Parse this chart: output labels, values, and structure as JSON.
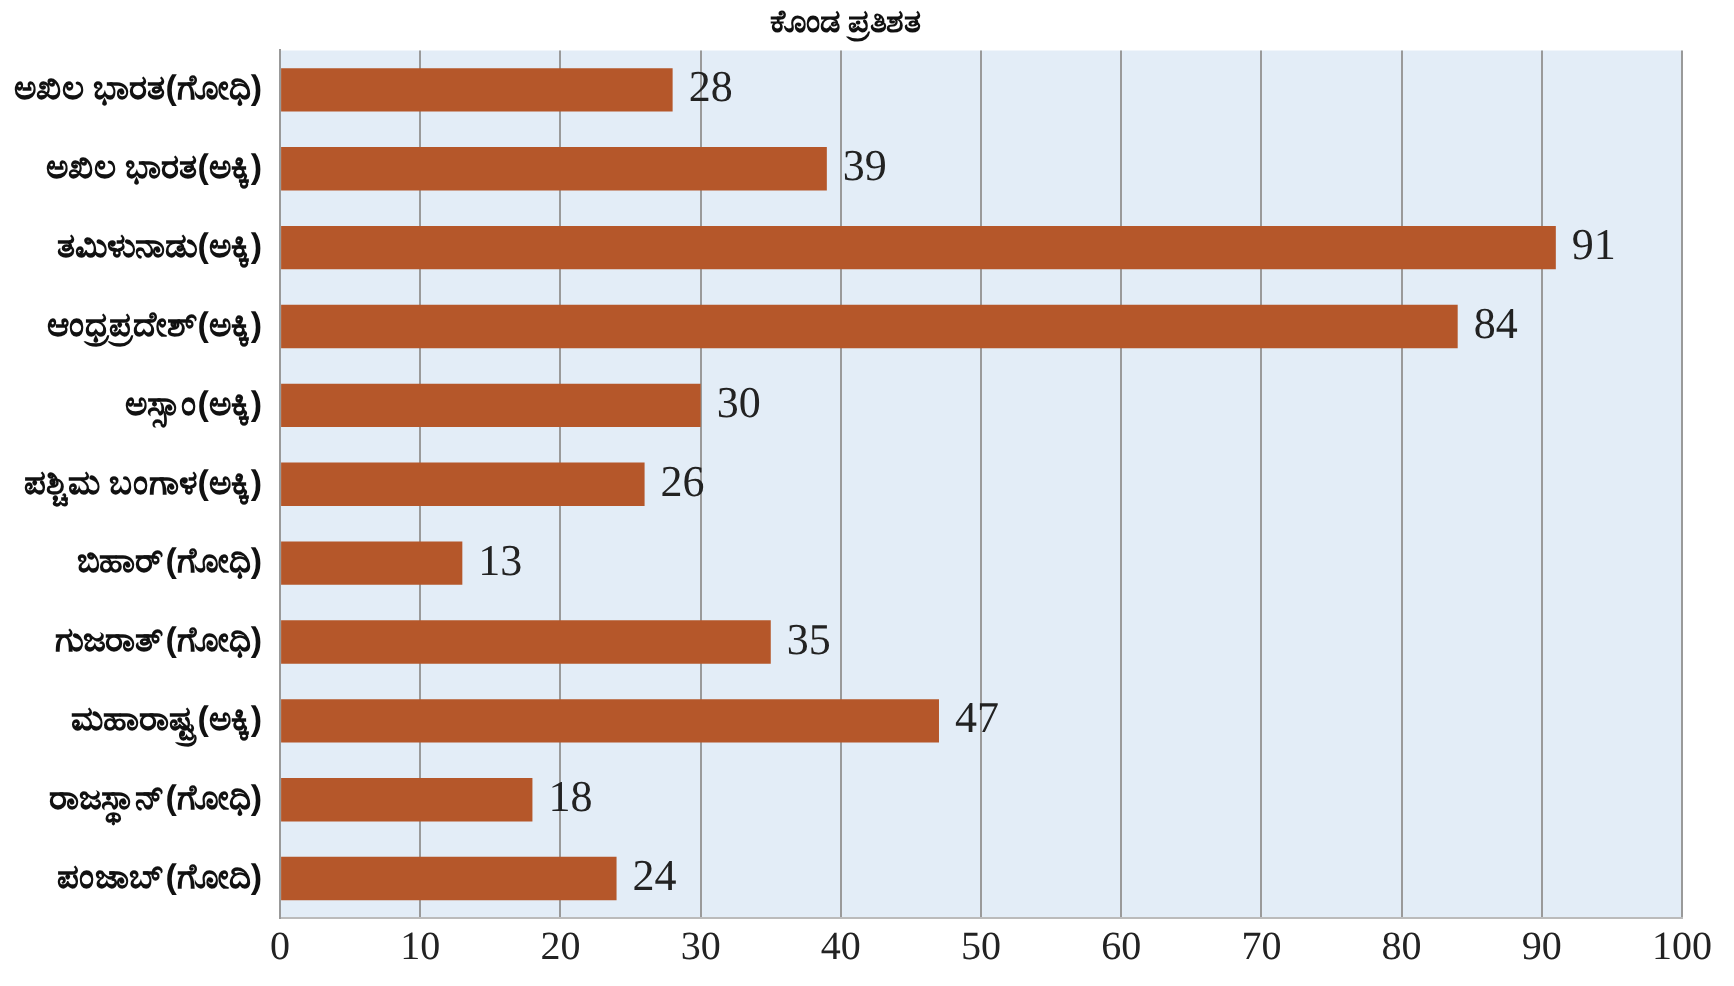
{
  "chart_data": {
    "type": "bar",
    "orientation": "horizontal",
    "title": "ಕೊಂಡ ಪ್ರತಿಶತ",
    "categories": [
      "ಅಖಿಲ ಭಾರತ(ಗೋಧಿ)",
      "ಅಖಿಲ ಭಾರತ(ಅಕ್ಕಿ)",
      "ತಮಿಳುನಾಡು(ಅಕ್ಕಿ)",
      "ಆಂಧ್ರಪ್ರದೇಶ್(ಅಕ್ಕಿ)",
      "ಅಸ್ಸಾಂ(ಅಕ್ಕಿ)",
      "ಪಶ್ಚಿಮ ಬಂಗಾಳ(ಅಕ್ಕಿ)",
      "ಬಿಹಾರ್(ಗೋಧಿ)",
      "ಗುಜರಾತ್(ಗೋಧಿ)",
      "ಮಹಾರಾಷ್ಟ್ರ(ಅಕ್ಕಿ)",
      "ರಾಜಸ್ಥಾನ್(ಗೋಧಿ)",
      "ಪಂಜಾಬ್(ಗೋದಿ)"
    ],
    "values": [
      28,
      39,
      91,
      84,
      30,
      26,
      13,
      35,
      47,
      18,
      24
    ],
    "color": "#b5572a",
    "data_labels": true,
    "xlim": [
      0,
      100
    ],
    "xticks": [
      0,
      10,
      20,
      30,
      40,
      50,
      60,
      70,
      80,
      90,
      100
    ],
    "grid": "x"
  }
}
